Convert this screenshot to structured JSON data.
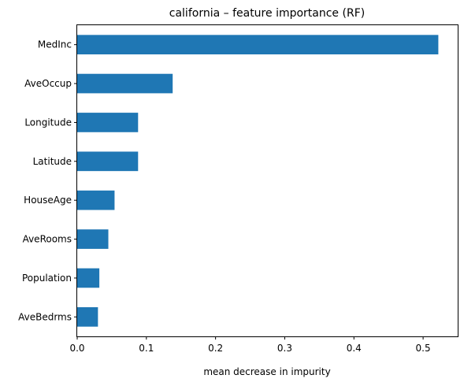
{
  "chart_data": {
    "type": "bar",
    "orientation": "horizontal",
    "title": "california – feature importance (RF)",
    "xlabel": "mean decrease in impurity",
    "ylabel": "",
    "categories": [
      "MedInc",
      "AveOccup",
      "Longitude",
      "Latitude",
      "HouseAge",
      "AveRooms",
      "Population",
      "AveBedrms"
    ],
    "values": [
      0.522,
      0.138,
      0.088,
      0.088,
      0.054,
      0.045,
      0.032,
      0.03
    ],
    "xlim": [
      0,
      0.55
    ],
    "xticks": [
      "0.0",
      "0.1",
      "0.2",
      "0.3",
      "0.4",
      "0.5"
    ],
    "bar_color": "#1f77b4",
    "grid": false,
    "legend": "none"
  }
}
